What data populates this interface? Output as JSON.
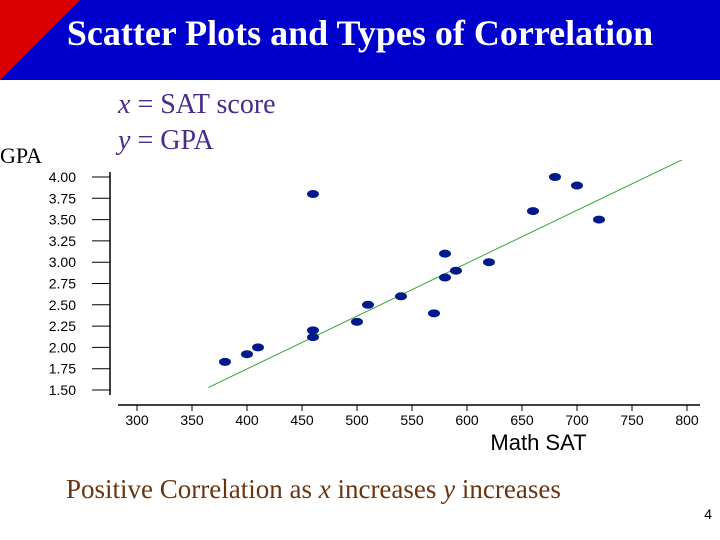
{
  "slide": {
    "title": "Scatter Plots and Types of Correlation",
    "x_var": "x",
    "x_rest": " = SAT score",
    "y_var": "y",
    "y_rest": " = GPA",
    "caption_pre": "Positive Correlation as ",
    "caption_x": "x",
    "caption_mid": " increases ",
    "caption_y": "y",
    "caption_post": " increases",
    "page_number": "4",
    "colors": {
      "title_bg": "#0000cc",
      "title_accent": "#d80000",
      "points": "#001a8c",
      "trend": "#3aa43a",
      "caption": "#6b3410"
    }
  },
  "chart_data": {
    "type": "scatter",
    "title": "",
    "xlabel": "Math SAT",
    "ylabel": "GPA",
    "xlim": [
      300,
      800
    ],
    "ylim": [
      1.5,
      4.0
    ],
    "x_ticks": [
      "300",
      "350",
      "400",
      "450",
      "500",
      "550",
      "600",
      "650",
      "700",
      "750",
      "800"
    ],
    "y_ticks": [
      "4.00",
      "3.75",
      "3.50",
      "3.25",
      "3.00",
      "2.75",
      "2.50",
      "2.25",
      "2.00",
      "1.75",
      "1.50"
    ],
    "points": [
      {
        "x": 380,
        "y": 1.83
      },
      {
        "x": 400,
        "y": 1.92
      },
      {
        "x": 410,
        "y": 2.0
      },
      {
        "x": 460,
        "y": 2.12
      },
      {
        "x": 460,
        "y": 2.2
      },
      {
        "x": 460,
        "y": 3.8
      },
      {
        "x": 500,
        "y": 2.3
      },
      {
        "x": 510,
        "y": 2.5
      },
      {
        "x": 540,
        "y": 2.6
      },
      {
        "x": 570,
        "y": 2.4
      },
      {
        "x": 580,
        "y": 2.82
      },
      {
        "x": 580,
        "y": 3.1
      },
      {
        "x": 590,
        "y": 2.9
      },
      {
        "x": 620,
        "y": 3.0
      },
      {
        "x": 660,
        "y": 3.6
      },
      {
        "x": 680,
        "y": 4.0
      },
      {
        "x": 700,
        "y": 3.9
      },
      {
        "x": 720,
        "y": 3.5
      }
    ],
    "trend_line": {
      "x1": 365,
      "y1": 1.53,
      "x2": 800,
      "y2": 4.23
    },
    "grid": false,
    "legend": "none"
  }
}
